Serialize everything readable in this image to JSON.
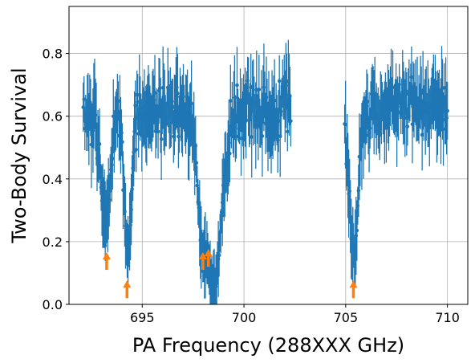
{
  "chart_data": {
    "type": "scatter",
    "title": "",
    "xlabel": "PA Frequency (288XXX GHz)",
    "ylabel": "Two-Body Survival",
    "xlim": [
      691.4,
      711.0
    ],
    "ylim": [
      0.0,
      0.95
    ],
    "xticks": [
      695,
      700,
      705,
      710
    ],
    "xtick_labels": [
      "695",
      "700",
      "705",
      "710"
    ],
    "yticks": [
      0.0,
      0.2,
      0.4,
      0.6,
      0.8
    ],
    "ytick_labels": [
      "0.0",
      "0.2",
      "0.4",
      "0.6",
      "0.8"
    ],
    "grid": true,
    "legend": false,
    "colors": {
      "series": "#1f77b4",
      "markers": "#ff7f0e"
    },
    "series": [
      {
        "style": "points with vertical error bars, connected by a line",
        "segments": [
          {
            "x_range": [
              692.1,
              702.3
            ],
            "baseline": 0.62,
            "noise": 0.08,
            "error": 0.1,
            "dips": [
              {
                "x": 693.2,
                "depth": 0.25,
                "width": 0.35
              },
              {
                "x": 694.3,
                "depth": 0.14,
                "width": 0.25
              },
              {
                "x": 697.95,
                "depth": 0.22,
                "width": 0.3
              },
              {
                "x": 698.5,
                "depth": 0.02,
                "width": 0.55
              }
            ]
          },
          {
            "x_range": [
              704.95,
              710.0
            ],
            "baseline": 0.63,
            "noise": 0.08,
            "error": 0.1,
            "dips": [
              {
                "x": 705.4,
                "depth": 0.13,
                "width": 0.3
              }
            ]
          }
        ]
      }
    ],
    "annotations": [
      {
        "type": "arrow-up",
        "x": 693.25,
        "y": 0.11
      },
      {
        "type": "arrow-up",
        "x": 694.25,
        "y": 0.02
      },
      {
        "type": "arrow-up",
        "x": 697.98,
        "y": 0.11
      },
      {
        "type": "arrow-up",
        "x": 698.25,
        "y": 0.12
      },
      {
        "type": "arrow-up",
        "x": 705.38,
        "y": 0.02
      }
    ]
  }
}
